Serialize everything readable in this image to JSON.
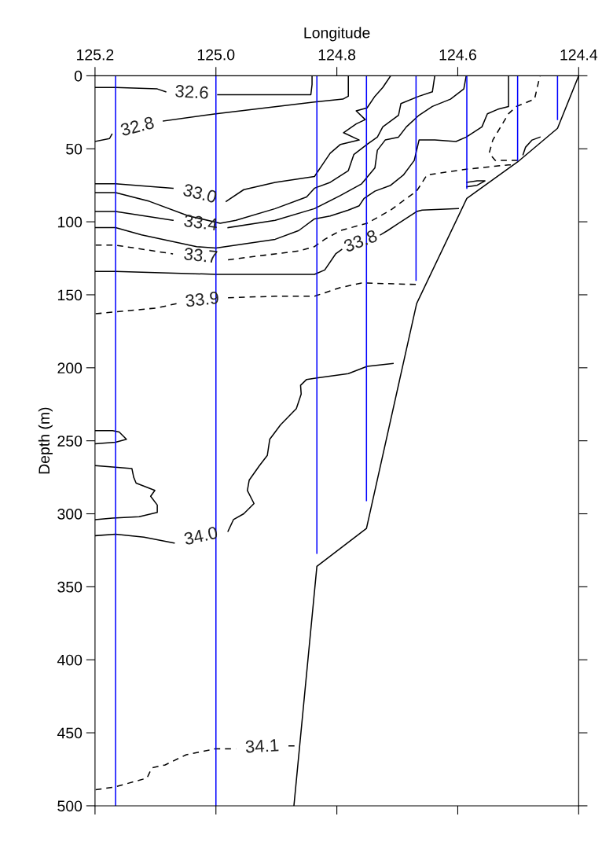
{
  "chart_data": {
    "type": "line",
    "xlabel": "Longitude",
    "ylabel": "Depth (m)",
    "xlim": [
      125.2,
      124.4
    ],
    "xticks": [
      {
        "value": 125.2,
        "label": "125.2"
      },
      {
        "value": 125.0,
        "label": "125.0"
      },
      {
        "value": 124.8,
        "label": "124.8"
      },
      {
        "value": 124.6,
        "label": "124.6"
      },
      {
        "value": 124.4,
        "label": "124.4"
      }
    ],
    "ylim": [
      500,
      0
    ],
    "yticks": [
      0,
      50,
      100,
      150,
      200,
      250,
      300,
      350,
      400,
      450,
      500
    ],
    "grid": false,
    "marker": "none",
    "series": [
      {
        "name": "32.6",
        "color": "#000000",
        "line_style": "solid",
        "x": [
          125.2,
          125.166,
          125.097,
          125.083,
          125.04,
          124.997,
          124.9,
          124.843,
          124.841,
          124.841
        ],
        "values": [
          8,
          8,
          9,
          11,
          null,
          13,
          13,
          13,
          6,
          0
        ]
      },
      {
        "name": "32.8",
        "color": "#000000",
        "line_style": "solid",
        "x": [
          125.2,
          125.176,
          125.172,
          125.13,
          125.087,
          125.0,
          124.837,
          124.79,
          124.781,
          124.781
        ],
        "values": [
          45,
          43,
          40,
          null,
          31,
          26,
          18,
          16,
          14,
          0
        ]
      },
      {
        "name": "33.0",
        "color": "#000000",
        "line_style": "solid",
        "x": [
          125.199,
          125.166,
          125.071,
          125.03,
          124.983,
          124.954,
          124.902,
          124.837,
          124.824,
          124.811,
          124.794,
          124.763,
          124.789,
          124.768,
          124.753,
          124.768,
          124.75,
          124.737,
          124.724,
          124.711
        ],
        "values": [
          74,
          74,
          77,
          null,
          86,
          78,
          73,
          69,
          61,
          53,
          47,
          44,
          39,
          33,
          30,
          24,
          22,
          14,
          8,
          0
        ]
      },
      {
        "color": "#000000",
        "line_style": "solid",
        "x": [
          125.199,
          125.166,
          125.11,
          125.045,
          124.993,
          124.967,
          124.902,
          124.85,
          124.837,
          124.811,
          124.781,
          124.772,
          124.75,
          124.733,
          124.724,
          124.698,
          124.694,
          124.664,
          124.642,
          124.638
        ],
        "values": [
          80,
          80,
          86,
          96,
          101,
          99,
          91,
          83,
          77,
          73,
          65,
          54,
          47,
          42,
          35,
          27,
          19,
          14,
          11,
          0
        ]
      },
      {
        "name": "33.4",
        "color": "#000000",
        "line_style": "solid",
        "x": [
          125.199,
          125.166,
          125.071,
          125.03,
          124.98,
          124.902,
          124.837,
          124.794,
          124.759,
          124.737,
          124.733,
          124.72,
          124.698,
          124.685,
          124.664,
          124.642,
          124.612,
          124.59,
          124.586
        ],
        "values": [
          93,
          93,
          99,
          null,
          104,
          99,
          91,
          82,
          74,
          63,
          51,
          44,
          42,
          35,
          27,
          21,
          16,
          9,
          0
        ]
      },
      {
        "color": "#000000",
        "line_style": "solid",
        "x": [
          125.199,
          125.166,
          125.123,
          125.032,
          125.0,
          124.902,
          124.863,
          124.837,
          124.811,
          124.781,
          124.763,
          124.755,
          124.737,
          124.711,
          124.69,
          124.672,
          124.664,
          124.638,
          124.603,
          124.586,
          124.56,
          124.551,
          124.534,
          124.516,
          124.516
        ],
        "values": [
          104,
          104,
          109,
          117,
          118,
          112,
          106,
          98,
          96,
          92,
          89,
          84,
          79,
          75,
          68,
          58,
          44,
          44,
          45,
          42,
          35,
          26,
          23,
          21,
          0
        ]
      },
      {
        "name": "33.7",
        "color": "#000000",
        "line_style": "dashed",
        "x": [
          125.199,
          125.166,
          125.071,
          125.03,
          124.98,
          124.902,
          124.863,
          124.837,
          124.82,
          124.794,
          124.75,
          124.711,
          124.685,
          124.668,
          124.651,
          124.62,
          124.586,
          124.516,
          124.505
        ],
        "values": [
          116,
          116,
          122,
          null,
          126,
          122,
          120,
          117,
          112,
          106,
          101,
          92,
          84,
          79,
          68,
          66,
          64,
          61,
          61
        ]
      },
      {
        "color": "#000000",
        "line_style": "dashed",
        "x": [
          124.501,
          124.538,
          124.548,
          124.542,
          124.516,
          124.503,
          124.473,
          124.464
        ],
        "values": [
          58,
          58,
          53,
          44,
          26,
          21,
          16,
          0
        ]
      },
      {
        "name": "33.8",
        "color": "#000000",
        "line_style": "solid",
        "x": [
          125.199,
          125.166,
          125.0,
          124.837,
          124.82,
          124.802,
          124.792,
          124.76,
          124.728,
          124.716,
          124.694,
          124.668,
          124.659,
          124.599
        ],
        "values": [
          134,
          134,
          136,
          136,
          133,
          122,
          119,
          null,
          109,
          106,
          100,
          93,
          92,
          91
        ]
      },
      {
        "color": "#000000",
        "line_style": "solid",
        "x": [
          124.585,
          124.568,
          124.555,
          124.568,
          124.585
        ],
        "values": [
          73,
          72,
          72,
          75,
          76
        ]
      },
      {
        "color": "#000000",
        "line_style": "solid",
        "x": [
          124.492,
          124.488,
          124.477,
          124.464
        ],
        "values": [
          54,
          49,
          44,
          42
        ]
      },
      {
        "name": "33.9",
        "color": "#000000",
        "line_style": "dashed",
        "x": [
          125.199,
          125.097,
          125.065,
          125.03,
          124.98,
          124.902,
          124.837,
          124.794,
          124.759,
          124.75,
          124.664
        ],
        "values": [
          163,
          159,
          156,
          null,
          152,
          151,
          151,
          145,
          142,
          142,
          143
        ]
      },
      {
        "name": "34.0",
        "color": "#000000",
        "line_style": "solid",
        "x": [
          125.199,
          125.166,
          125.119,
          125.069,
          125.03,
          124.98,
          124.971,
          124.954,
          124.937,
          124.948,
          124.945,
          124.928,
          124.915,
          124.911,
          124.893,
          124.867,
          124.859,
          124.86,
          124.85,
          124.833,
          124.781,
          124.75,
          124.707
        ],
        "values": [
          315,
          314,
          316,
          320,
          null,
          312,
          304,
          300,
          293,
          284,
          277,
          267,
          260,
          249,
          239,
          228,
          218,
          212,
          208,
          207,
          204,
          199,
          197
        ]
      },
      {
        "color": "#000000",
        "line_style": "solid",
        "x": [
          125.199,
          125.171,
          125.16,
          125.148,
          125.166,
          125.199
        ],
        "values": [
          243,
          243,
          244,
          249,
          251,
          252
        ]
      },
      {
        "color": "#000000",
        "line_style": "solid",
        "x": [
          125.199,
          125.171,
          125.139,
          125.136,
          125.132,
          125.101,
          125.108,
          125.097,
          125.097,
          125.127,
          125.171,
          125.199
        ],
        "values": [
          267,
          268,
          269,
          275,
          279,
          284,
          288,
          294,
          299,
          302,
          303,
          304
        ]
      },
      {
        "name": "34.1",
        "color": "#000000",
        "line_style": "dashed",
        "x": [
          125.199,
          125.166,
          125.114,
          125.106,
          125.084,
          125.049,
          125.002,
          124.967,
          124.93,
          124.88,
          124.867
        ],
        "values": [
          489,
          487,
          481,
          474,
          472,
          465,
          461,
          461,
          null,
          459,
          459
        ]
      },
      {
        "color": "#000000",
        "line_style": "solid",
        "x": [
          124.871,
          124.833,
          124.751,
          124.668,
          124.585,
          124.501,
          124.435,
          124.4
        ],
        "values": [
          500,
          336,
          310,
          156,
          84,
          59,
          36,
          0
        ]
      },
      {
        "color": "#0000ff",
        "line_style": "solid",
        "x": [
          125.166,
          125.166
        ],
        "values": [
          0,
          500
        ]
      },
      {
        "color": "#0000ff",
        "line_style": "solid",
        "x": [
          125.0,
          125.0
        ],
        "values": [
          0,
          500
        ]
      },
      {
        "color": "#0000ff",
        "line_style": "solid",
        "x": [
          124.833,
          124.833
        ],
        "values": [
          0,
          327
        ]
      },
      {
        "color": "#0000ff",
        "line_style": "solid",
        "x": [
          124.751,
          124.751
        ],
        "values": [
          0,
          291
        ]
      },
      {
        "color": "#0000ff",
        "line_style": "solid",
        "x": [
          124.669,
          124.669
        ],
        "values": [
          0,
          140
        ]
      },
      {
        "color": "#0000ff",
        "line_style": "solid",
        "x": [
          124.585,
          124.585
        ],
        "values": [
          0,
          77
        ]
      },
      {
        "color": "#0000ff",
        "line_style": "solid",
        "x": [
          124.501,
          124.501
        ],
        "values": [
          0,
          58
        ]
      },
      {
        "color": "#0000ff",
        "line_style": "solid",
        "x": [
          124.435,
          124.435
        ],
        "values": [
          0,
          30
        ]
      }
    ]
  }
}
